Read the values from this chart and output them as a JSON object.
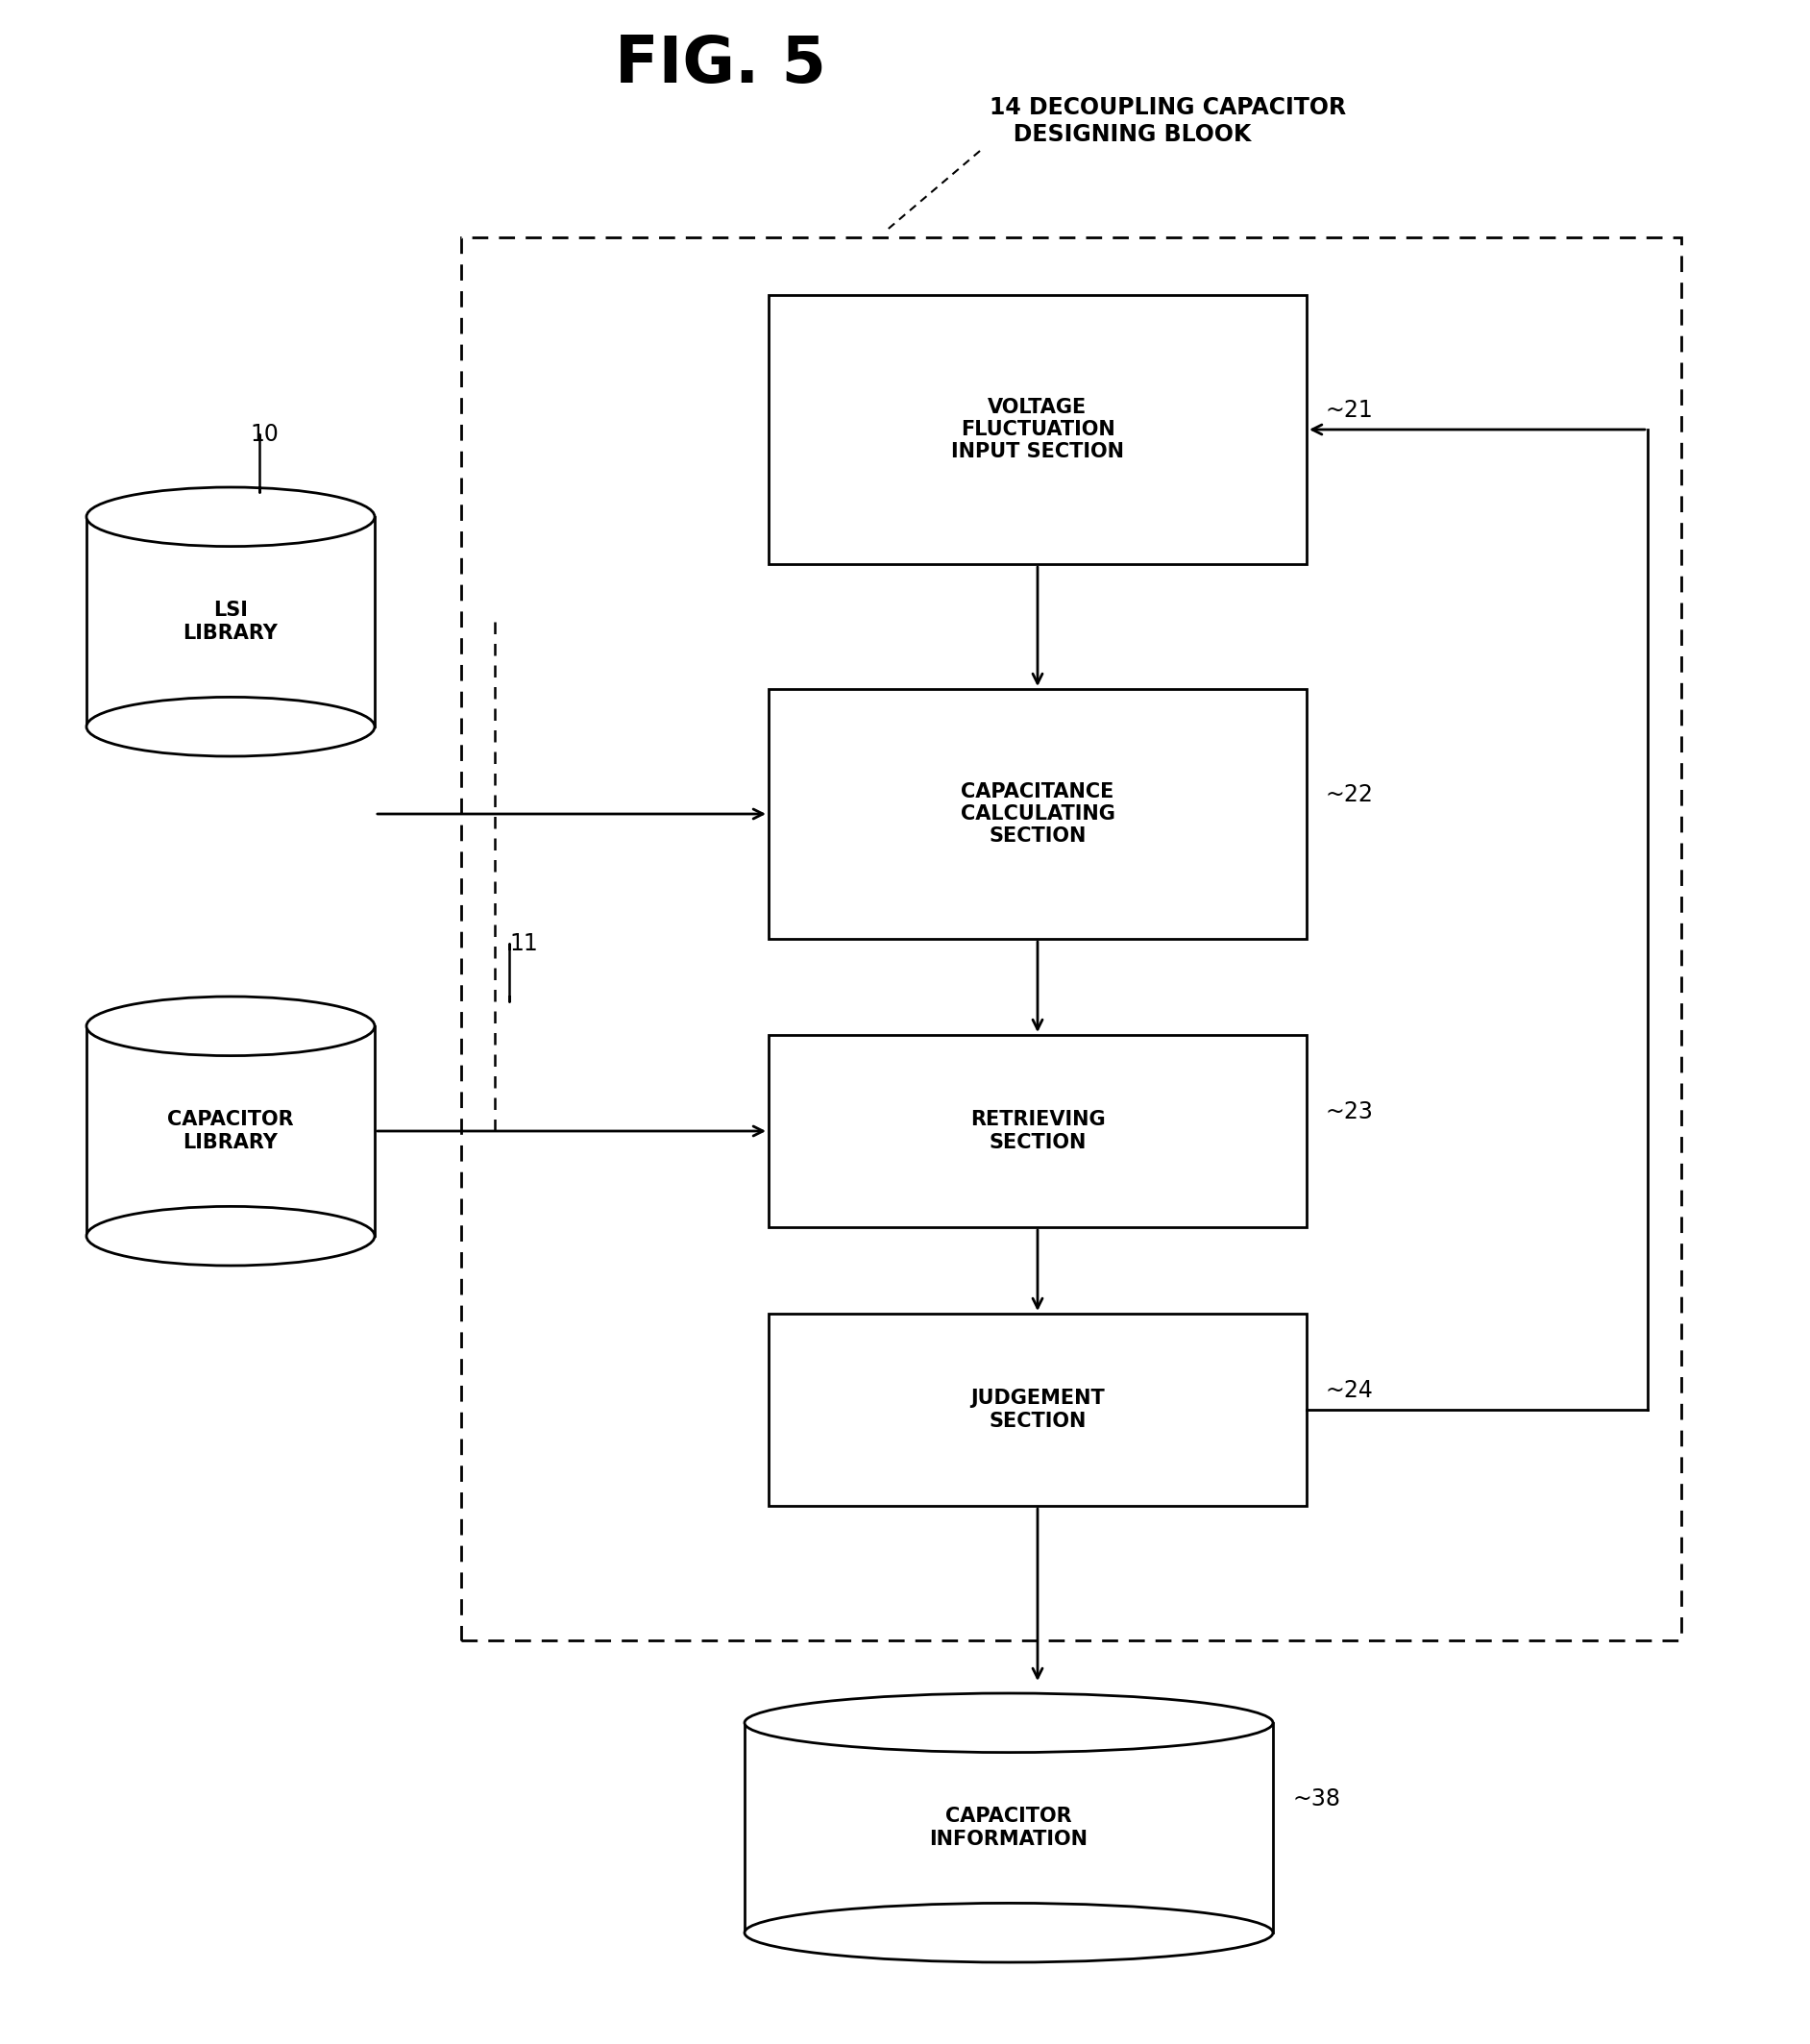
{
  "title": "FIG. 5",
  "title_fontsize": 48,
  "bg_color": "#ffffff",
  "label_14_line1": "14 DECOUPLING CAPACITOR",
  "label_14_line2": "   DESIGNING BLOOK",
  "label_10": "10",
  "label_11": "11",
  "label_21": "~21",
  "label_22": "~22",
  "label_23": "~23",
  "label_24": "~24",
  "label_38": "~38",
  "box21_text": "VOLTAGE\nFLUCTUATION\nINPUT SECTION",
  "box22_text": "CAPACITANCE\nCALCULATING\nSECTION",
  "box23_text": "RETRIEVING\nSECTION",
  "box24_text": "JUDGEMENT\nSECTION",
  "db_lsi_text": "LSI\nLIBRARY",
  "db_cap_text": "CAPACITOR\nLIBRARY",
  "db_out_text": "CAPACITOR\nINFORMATION",
  "text_fontsize": 15,
  "label_fontsize": 17
}
